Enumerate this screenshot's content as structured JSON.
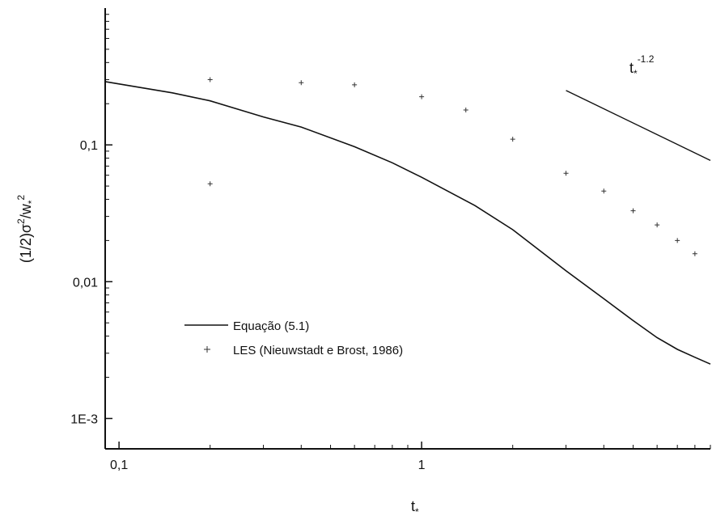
{
  "chart_data": {
    "type": "line",
    "xscale": "log",
    "yscale": "log",
    "xlim": [
      0.09,
      9
    ],
    "ylim": [
      0.0006,
      1
    ],
    "grid": false,
    "legend_position": "center-left",
    "xticks": [
      {
        "value": 0.1,
        "label": "0,1"
      },
      {
        "value": 1,
        "label": "1"
      }
    ],
    "yticks": [
      {
        "value": 0.1,
        "label": "0,1"
      },
      {
        "value": 0.01,
        "label": "0,01"
      },
      {
        "value": 0.001,
        "label": "1E-3"
      }
    ],
    "xlabel": {
      "main": "t",
      "sub": "*"
    },
    "ylabel": {
      "main": "(1/2)σ",
      "sup1": "2",
      "mid": "/w",
      "sub": "*",
      "sup2": "2"
    },
    "series": [
      {
        "name": "Equação (5.1)",
        "style": "line",
        "x": [
          0.09,
          0.15,
          0.2,
          0.3,
          0.4,
          0.6,
          0.8,
          1.0,
          1.5,
          2.0,
          3.0,
          4.0,
          5.0,
          6.0,
          7.0,
          8.0,
          9.0
        ],
        "y": [
          0.29,
          0.24,
          0.21,
          0.16,
          0.135,
          0.097,
          0.074,
          0.058,
          0.036,
          0.024,
          0.012,
          0.0075,
          0.0052,
          0.0039,
          0.0032,
          0.0028,
          0.0025
        ]
      },
      {
        "name": "LES (Nieuwstadt e Brost, 1986)",
        "style": "markers",
        "x": [
          0.2,
          0.4,
          0.6,
          1.0,
          1.4,
          2.0,
          3.0,
          4.0,
          5.0,
          6.0,
          7.0,
          8.0,
          0.2
        ],
        "y": [
          0.3,
          0.285,
          0.275,
          0.225,
          0.18,
          0.11,
          0.062,
          0.046,
          0.033,
          0.026,
          0.02,
          0.016,
          0.052
        ]
      }
    ],
    "annotation": {
      "label_main": "t",
      "label_sub": "*",
      "label_sup": "-1.2",
      "line": {
        "x": [
          3.0,
          9.0
        ],
        "y": [
          0.25,
          0.077
        ]
      }
    }
  }
}
